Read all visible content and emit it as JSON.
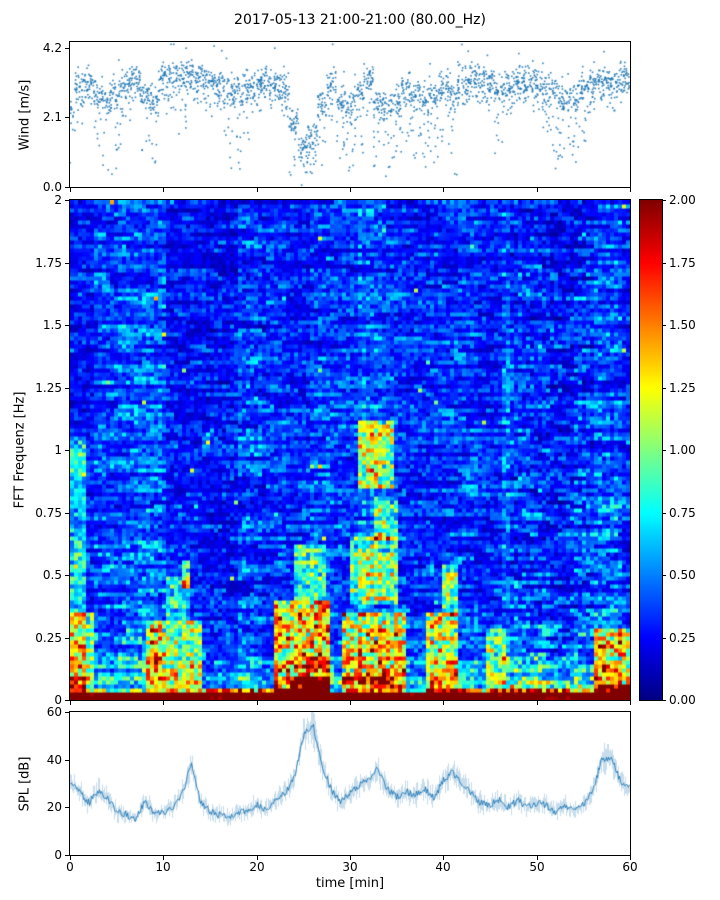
{
  "title": "2017-05-13 21:00-21:00 (80.00_Hz)",
  "colors": {
    "series": "#1f77b4",
    "axes": "#000000",
    "background": "#ffffff"
  },
  "chart_data": [
    {
      "id": "wind",
      "type": "scatter",
      "ylabel": "Wind [m/s]",
      "ylim": [
        0,
        4.37
      ],
      "yticks": [
        "4.2",
        "2.1",
        "0.0"
      ],
      "xlim": [
        0,
        60
      ],
      "x_start": 0,
      "x_step": 1,
      "marker_color": "#1f77b4",
      "mean_wind_per_min": [
        2.2,
        3.0,
        3.2,
        2.8,
        2.6,
        2.8,
        3.2,
        3.3,
        2.8,
        2.6,
        3.3,
        3.4,
        3.3,
        3.4,
        3.3,
        3.2,
        3.1,
        2.9,
        2.8,
        3.0,
        3.1,
        3.2,
        3.1,
        3.0,
        2.0,
        1.2,
        1.5,
        2.5,
        3.2,
        2.6,
        2.4,
        2.8,
        3.2,
        2.6,
        2.4,
        2.6,
        3.0,
        2.8,
        2.6,
        2.8,
        3.0,
        2.8,
        3.2,
        3.3,
        3.2,
        3.2,
        2.9,
        3.1,
        3.2,
        3.2,
        3.1,
        3.0,
        2.8,
        2.6,
        2.7,
        3.0,
        3.2,
        3.3,
        3.2,
        3.3,
        3.2
      ],
      "min_wind_per_min": [
        0.5,
        1.5,
        2.5,
        0.4,
        0.3,
        0.5,
        2.0,
        2.5,
        0.3,
        0.3,
        2.2,
        2.0,
        1.5,
        2.5,
        2.5,
        2.0,
        2.3,
        0.4,
        0.3,
        1.0,
        2.2,
        2.4,
        2.2,
        2.0,
        0.1,
        0.05,
        0.1,
        0.2,
        2.0,
        0.3,
        0.2,
        0.5,
        2.0,
        0.3,
        0.2,
        0.3,
        1.0,
        0.4,
        0.3,
        0.5,
        0.8,
        0.3,
        2.2,
        2.5,
        2.4,
        2.2,
        0.6,
        2.0,
        2.4,
        2.4,
        2.2,
        1.5,
        0.5,
        0.4,
        0.5,
        1.2,
        2.2,
        2.4,
        2.2,
        2.4,
        2.5
      ]
    },
    {
      "id": "spectrogram",
      "type": "heatmap",
      "ylabel": "FFT Frequenz [Hz]",
      "ylim": [
        0,
        2
      ],
      "yticks": [
        "2",
        "1.75",
        "1.5",
        "1.25",
        "1",
        "0.75",
        "0.5",
        "0.25",
        "0"
      ],
      "xlim": [
        0,
        60
      ],
      "colormap": "jet",
      "clim": [
        0,
        2
      ],
      "colorbar_ticks": [
        "2.00",
        "1.75",
        "1.50",
        "1.25",
        "1.00",
        "0.75",
        "0.50",
        "0.25",
        "0.00"
      ],
      "background_level": 0.36,
      "saturated_band_max_hz": 0.03,
      "hotspots": [
        {
          "t": [
            0,
            1.5
          ],
          "f": [
            0,
            1.05
          ],
          "v": 0.5
        },
        {
          "t": [
            0,
            2.5
          ],
          "f": [
            0,
            0.35
          ],
          "v": 0.9
        },
        {
          "t": [
            8,
            14
          ],
          "f": [
            0,
            0.32
          ],
          "v": 1.0
        },
        {
          "t": [
            10.5,
            13
          ],
          "f": [
            0.32,
            0.5
          ],
          "v": 0.6
        },
        {
          "t": [
            12,
            13
          ],
          "f": [
            0.45,
            0.56
          ],
          "v": 0.8
        },
        {
          "t": [
            22,
            28
          ],
          "f": [
            0,
            0.4
          ],
          "v": 1.4
        },
        {
          "t": [
            23.5,
            28
          ],
          "f": [
            0,
            0.09
          ],
          "v": 1.5
        },
        {
          "t": [
            24,
            27.5
          ],
          "f": [
            0.4,
            0.62
          ],
          "v": 0.7
        },
        {
          "t": [
            29,
            36
          ],
          "f": [
            0,
            0.35
          ],
          "v": 1.2
        },
        {
          "t": [
            30,
            35
          ],
          "f": [
            0.38,
            0.66
          ],
          "v": 0.9
        },
        {
          "t": [
            31,
            34.5
          ],
          "f": [
            0.85,
            1.12
          ],
          "v": 1.0
        },
        {
          "t": [
            32.5,
            35
          ],
          "f": [
            0.64,
            0.82
          ],
          "v": 0.7
        },
        {
          "t": [
            38,
            41.5
          ],
          "f": [
            0,
            0.35
          ],
          "v": 1.0
        },
        {
          "t": [
            40,
            41.5
          ],
          "f": [
            0.33,
            0.55
          ],
          "v": 0.8
        },
        {
          "t": [
            44.5,
            46.5
          ],
          "f": [
            0,
            0.28
          ],
          "v": 0.7
        },
        {
          "t": [
            47,
            56
          ],
          "f": [
            0.15,
            2
          ],
          "v": -0.1
        },
        {
          "t": [
            56,
            60
          ],
          "f": [
            0,
            0.28
          ],
          "v": 1.1
        },
        {
          "t": [
            56.5,
            60
          ],
          "f": [
            0,
            0.07
          ],
          "v": 1.2
        },
        {
          "t": [
            14.5,
            21
          ],
          "f": [
            0.25,
            2
          ],
          "v": -0.05
        }
      ]
    },
    {
      "id": "spl",
      "type": "line",
      "ylabel": "SPL [dB]",
      "ylim": [
        0,
        60
      ],
      "yticks": [
        "60",
        "40",
        "20",
        "0"
      ],
      "xlabel": "time [min]",
      "xticks": [
        "0",
        "10",
        "20",
        "30",
        "40",
        "50",
        "60"
      ],
      "x_start": 0,
      "x_step": 1,
      "line_color": "#1f77b4",
      "spl_per_min": [
        30,
        26,
        22,
        27,
        24,
        18,
        17,
        15,
        23,
        17,
        18,
        20,
        26,
        38,
        22,
        18,
        17,
        16,
        18,
        18,
        21,
        19,
        23,
        26,
        32,
        50,
        55,
        38,
        27,
        22,
        26,
        29,
        32,
        36,
        28,
        24,
        27,
        25,
        28,
        24,
        31,
        35,
        30,
        26,
        22,
        21,
        23,
        20,
        23,
        20,
        22,
        21,
        18,
        21,
        18,
        21,
        26,
        40,
        41,
        31,
        28
      ]
    }
  ]
}
